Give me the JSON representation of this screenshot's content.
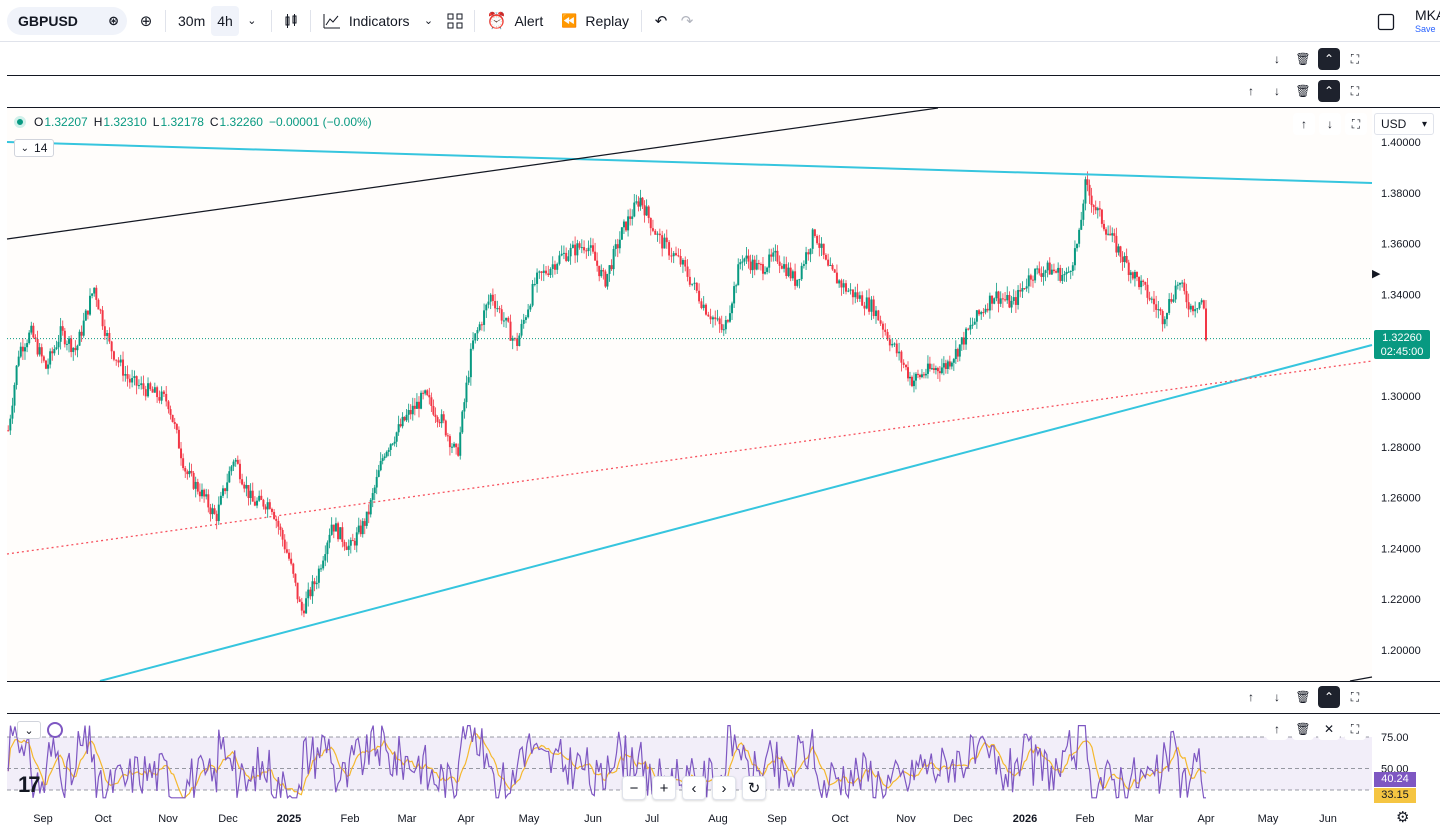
{
  "toolbar": {
    "symbol": "GBPUSD",
    "timeframes": [
      "30m",
      "4h"
    ],
    "active_timeframe": "4h",
    "indicators_label": "Indicators",
    "alert_label": "Alert",
    "replay_label": "Replay",
    "user_initials": "MKA",
    "user_status": "Save"
  },
  "legend": {
    "o_label": "O",
    "o": "1.32207",
    "h_label": "H",
    "h": "1.32310",
    "l_label": "L",
    "l": "1.32178",
    "c_label": "C",
    "c": "1.32260",
    "change": "−0.00001 (−0.00%)"
  },
  "indicator_collapse_label": "14",
  "currency_label": "USD",
  "last_price": {
    "value": "1.32260",
    "countdown": "02:45:00"
  },
  "rsi_tags": {
    "last": "40.24",
    "signal": "33.15"
  },
  "colors": {
    "up": "#089981",
    "down": "#f23645",
    "trendline": "#36c5de",
    "rsi": "#7e57c2",
    "rsi_ma": "#f5b82e"
  },
  "chart_data": {
    "type": "line",
    "symbol": "GBPUSD",
    "interval": "4h",
    "ylim": [
      1.19,
      1.4
    ],
    "y_ticks": [
      "1.40000",
      "1.38000",
      "1.36000",
      "1.34000",
      "1.32000",
      "1.30000",
      "1.28000",
      "1.26000",
      "1.24000",
      "1.22000",
      "1.20000"
    ],
    "x_ticks": [
      "Sep",
      "Oct",
      "Nov",
      "Dec",
      "2025",
      "Feb",
      "Mar",
      "Apr",
      "May",
      "Jun",
      "Jul",
      "Aug",
      "Sep",
      "Oct",
      "Nov",
      "Dec",
      "2026",
      "Feb",
      "Mar",
      "Apr",
      "May",
      "Jun"
    ],
    "x": [
      "2024-09",
      "2024-10",
      "2024-11",
      "2024-12",
      "2025-01",
      "2025-02",
      "2025-03",
      "2025-04",
      "2025-05",
      "2025-06",
      "2025-07",
      "2025-08",
      "2025-09",
      "2025-10",
      "2025-11",
      "2025-12",
      "2026-01",
      "2026-02",
      "2026-03",
      "2026-04"
    ],
    "series": [
      {
        "values": [
          1.305,
          1.328,
          1.311,
          1.262,
          1.258,
          1.245,
          1.291,
          1.292,
          1.335,
          1.357,
          1.372,
          1.338,
          1.353,
          1.344,
          1.316,
          1.338,
          1.35,
          1.38,
          1.337,
          1.3226
        ]
      }
    ],
    "last": {
      "open": 1.32207,
      "high": 1.3231,
      "low": 1.32178,
      "close": 1.3226
    },
    "rsi": {
      "period": 14,
      "levels": [
        75.0,
        50.0
      ],
      "ylim": [
        25,
        85
      ],
      "last": 40.24,
      "signal": 33.15
    }
  }
}
